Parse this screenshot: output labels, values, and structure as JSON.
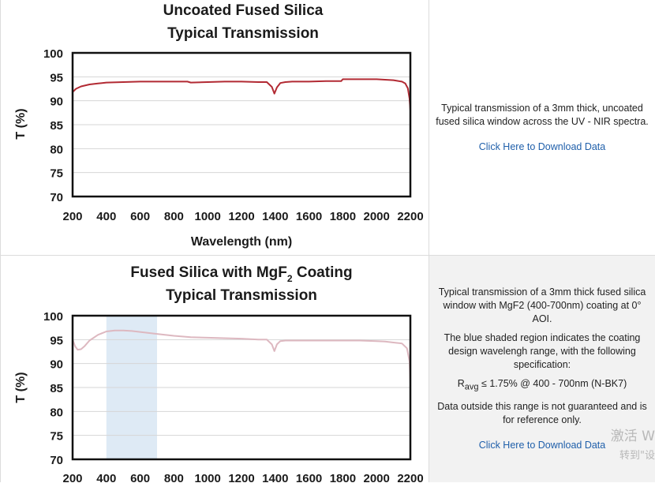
{
  "rows": [
    {
      "description": [
        "Typical transmission of a 3mm thick, uncoated fused silica window across the UV - NIR spectra."
      ],
      "download_link": "Click Here to Download Data"
    },
    {
      "description": [
        "Typical transmission of a 3mm thick fused silica window with MgF2 (400-700nm) coating at 0° AOI.",
        "The blue shaded region indicates the coating design wavelengh range, with the following specification:"
      ],
      "spec": {
        "main": "R",
        "sub": "avg",
        "rest": " ≤ 1.75% @ 400 - 700nm (N-BK7)"
      },
      "note": "Data outside this range is not guaranteed and is for reference only.",
      "download_link": "Click Here to Download Data"
    }
  ],
  "watermark": {
    "line1": "激活 W",
    "line2": "转到\"设"
  },
  "chart_data": [
    {
      "type": "line",
      "title": [
        "Uncoated Fused Silica",
        "Typical Transmission"
      ],
      "xlabel": "Wavelength (nm)",
      "ylabel": "T (%)",
      "xlim": [
        200,
        2200
      ],
      "ylim": [
        70,
        100
      ],
      "xticks": [
        200,
        400,
        600,
        800,
        1000,
        1200,
        1400,
        1600,
        1800,
        2000,
        2200
      ],
      "yticks": [
        70,
        75,
        80,
        85,
        90,
        95,
        100
      ],
      "grid": true,
      "color": "#b22a33",
      "x": [
        200,
        220,
        250,
        300,
        350,
        400,
        500,
        600,
        700,
        800,
        880,
        900,
        1000,
        1100,
        1200,
        1300,
        1350,
        1380,
        1395,
        1410,
        1430,
        1460,
        1500,
        1600,
        1700,
        1790,
        1800,
        1900,
        2000,
        2050,
        2100,
        2150,
        2170,
        2185,
        2195,
        2200
      ],
      "y": [
        91.8,
        92.5,
        93.0,
        93.4,
        93.6,
        93.8,
        93.9,
        94.0,
        94.0,
        94.0,
        94.0,
        93.8,
        93.9,
        94.0,
        94.0,
        93.9,
        93.9,
        92.9,
        91.5,
        92.8,
        93.7,
        93.9,
        94.0,
        94.0,
        94.1,
        94.1,
        94.5,
        94.5,
        94.5,
        94.4,
        94.3,
        94.0,
        93.6,
        92.6,
        90.5,
        88.0
      ]
    },
    {
      "type": "line",
      "title": [
        "Fused Silica with MgF",
        "2",
        " Coating",
        "Typical Transmission"
      ],
      "xlabel": "",
      "ylabel": "T (%)",
      "xlim": [
        200,
        2200
      ],
      "ylim": [
        70,
        100
      ],
      "xticks": [
        200,
        400,
        600,
        800,
        1000,
        1200,
        1400,
        1600,
        1800,
        2000,
        2200
      ],
      "yticks": [
        70,
        75,
        80,
        85,
        90,
        95,
        100
      ],
      "grid": true,
      "color": "#ddb8c0",
      "shaded_range": [
        400,
        700
      ],
      "shade_color": "#deeaf5",
      "x": [
        200,
        215,
        230,
        250,
        270,
        300,
        350,
        400,
        450,
        500,
        550,
        600,
        700,
        800,
        900,
        1000,
        1100,
        1200,
        1300,
        1350,
        1380,
        1395,
        1410,
        1430,
        1460,
        1500,
        1600,
        1700,
        1800,
        1900,
        2000,
        2050,
        2100,
        2150,
        2180,
        2195,
        2200
      ],
      "y": [
        95.0,
        93.6,
        92.9,
        93.0,
        93.6,
        94.8,
        96.0,
        96.7,
        96.9,
        96.9,
        96.8,
        96.6,
        96.2,
        95.8,
        95.5,
        95.4,
        95.3,
        95.2,
        95.0,
        95.0,
        94.0,
        92.6,
        94.0,
        94.7,
        94.8,
        94.8,
        94.8,
        94.8,
        94.8,
        94.8,
        94.7,
        94.6,
        94.4,
        94.2,
        93.2,
        90.5,
        86.0
      ]
    }
  ]
}
